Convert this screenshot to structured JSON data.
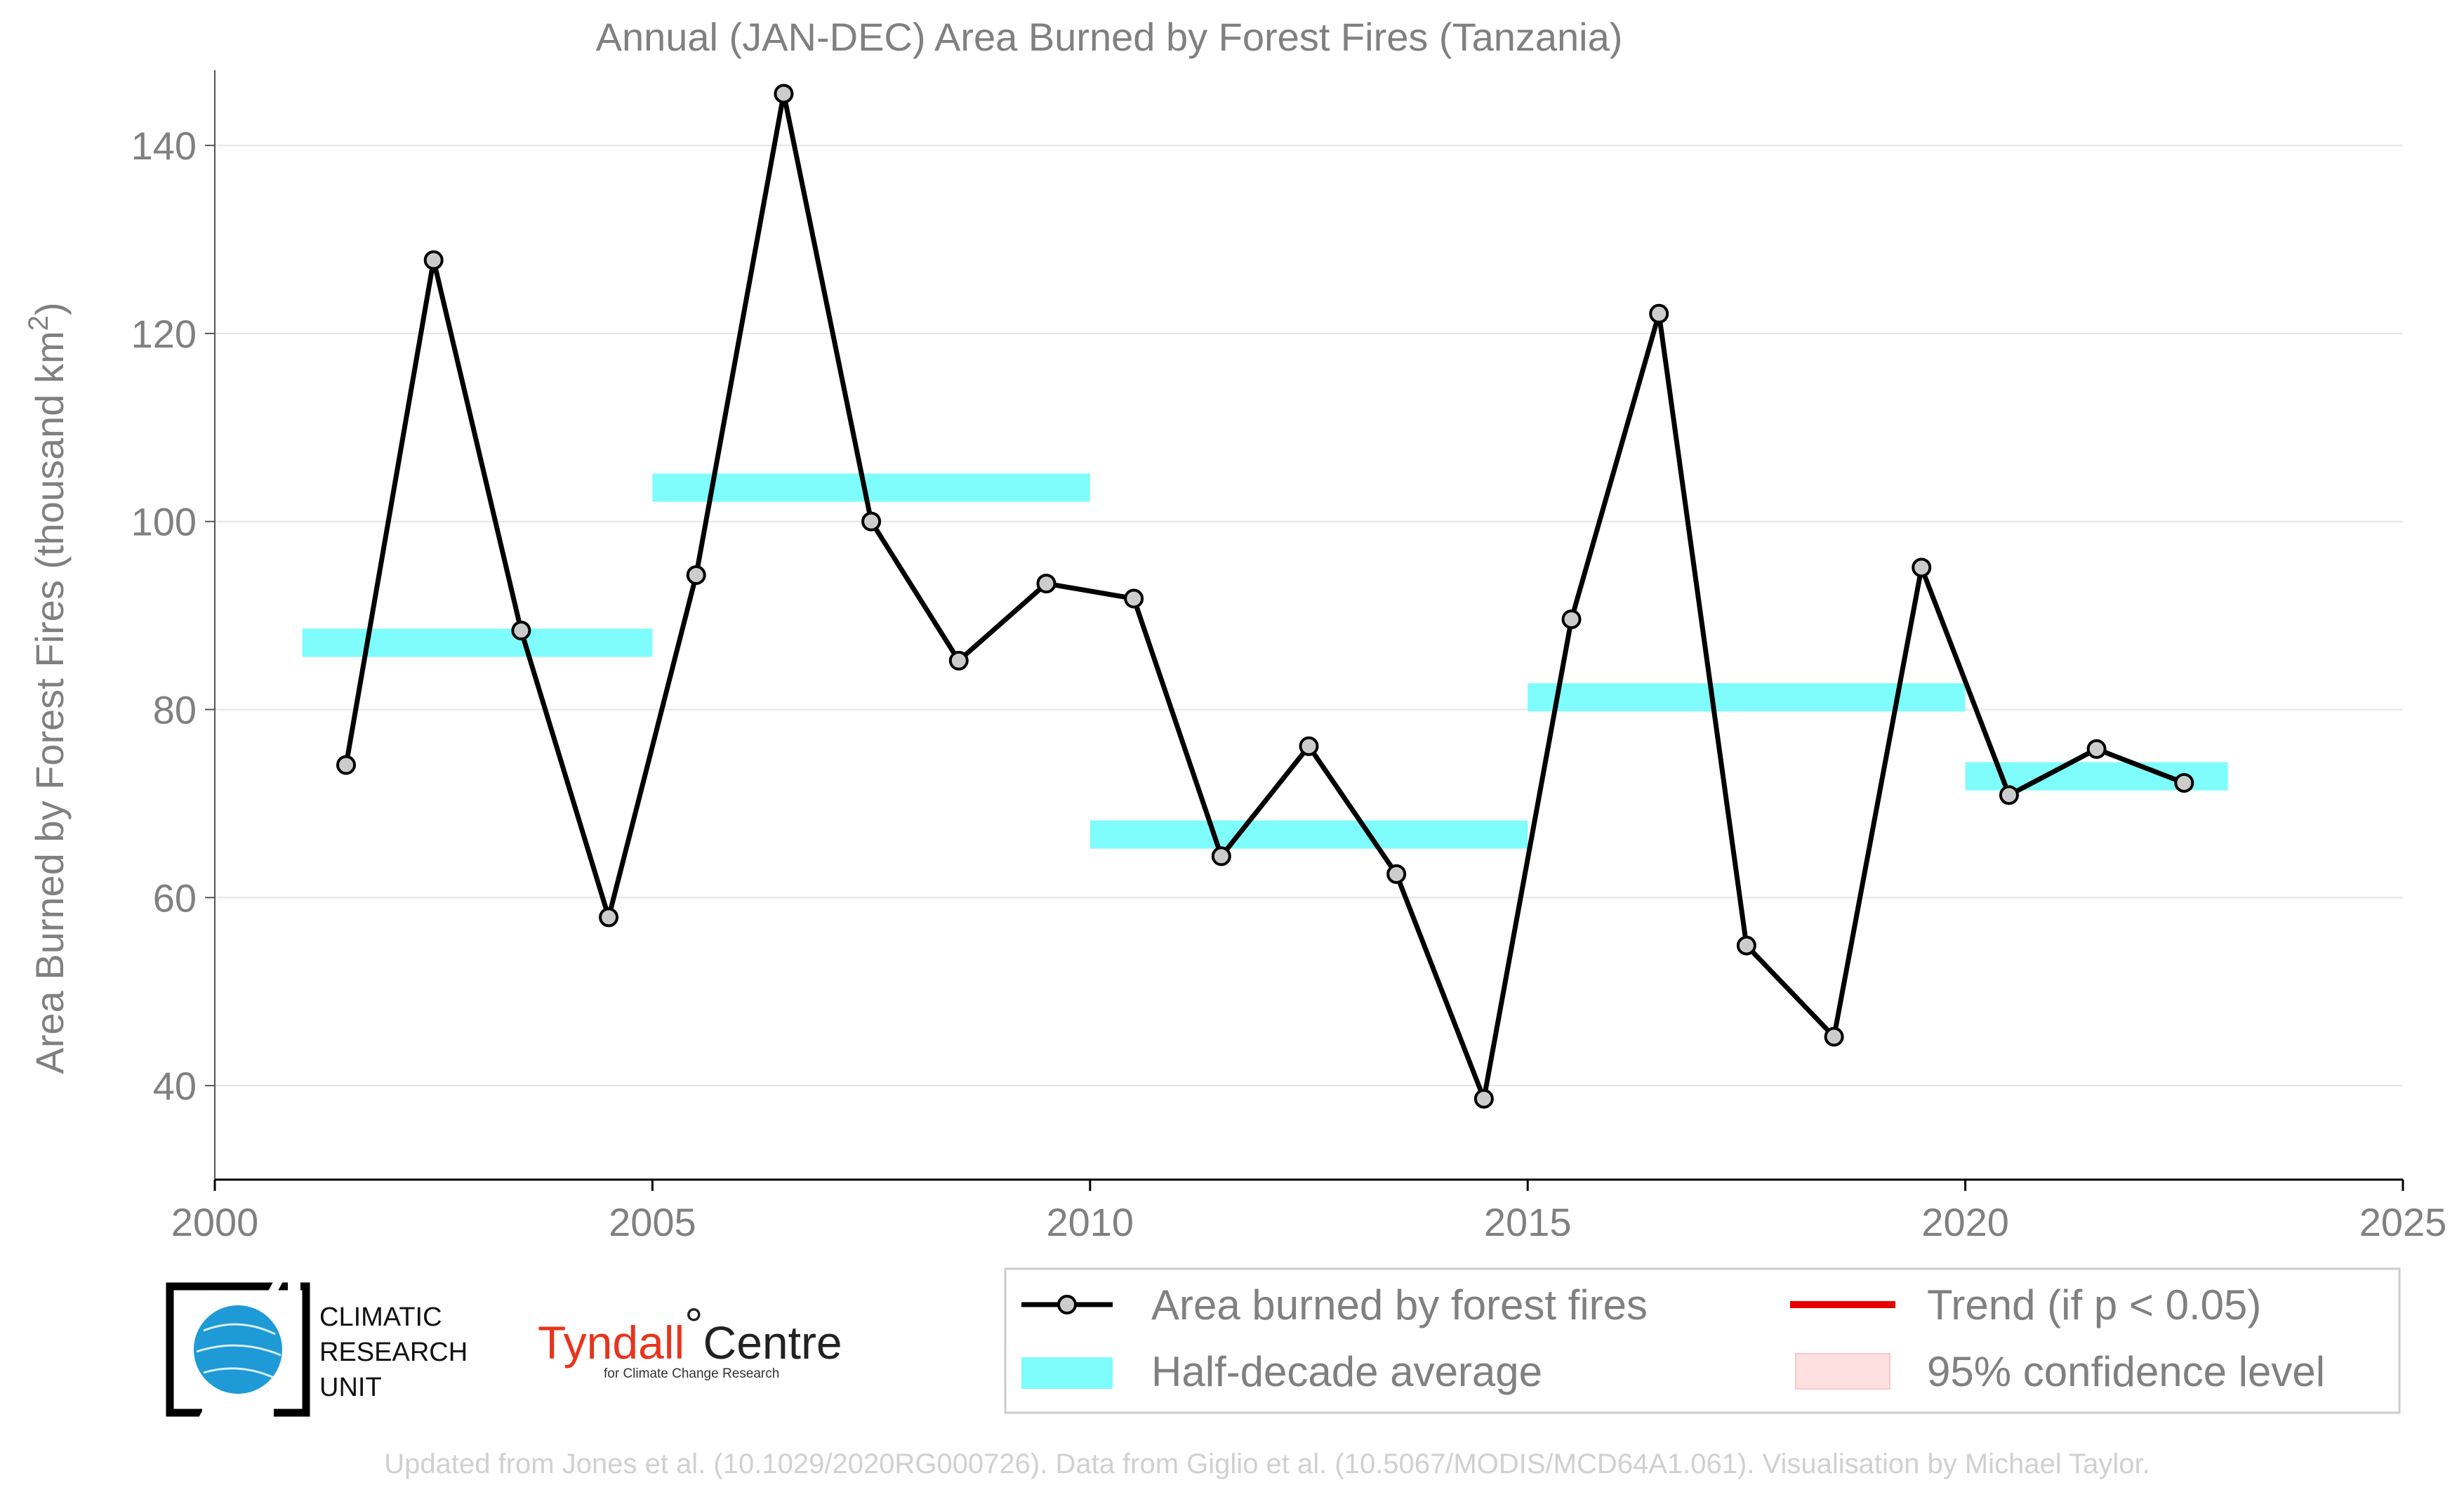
{
  "chart_data": {
    "type": "line",
    "title": "Annual (JAN-DEC) Area Burned by Forest Fires (Tanzania)",
    "xlabel": "",
    "ylabel": "Area Burned by Forest Fires (thousand km",
    "ylabel_superscript": "2",
    "ylabel_close": ")",
    "xlim": [
      2000,
      2025
    ],
    "ylim": [
      30,
      148
    ],
    "x_ticks": [
      "2000",
      "2005",
      "2010",
      "2015",
      "2020",
      "2025"
    ],
    "y_ticks": [
      "40",
      "60",
      "80",
      "100",
      "120",
      "140"
    ],
    "grid": "horizontal",
    "legend_position": "bottom-right",
    "series": [
      {
        "name": "Area burned by forest fires",
        "color": "#000000",
        "marker_fill": "#cccccc",
        "x": [
          2001.5,
          2002.5,
          2003.5,
          2004.5,
          2005.5,
          2006.5,
          2007.5,
          2008.5,
          2009.5,
          2010.5,
          2011.5,
          2012.5,
          2013.5,
          2014.5,
          2015.5,
          2016.5,
          2017.5,
          2018.5,
          2019.5,
          2020.5,
          2021.5,
          2022.5
        ],
        "values": [
          74.1,
          127.8,
          88.4,
          57.9,
          94.3,
          145.5,
          100.0,
          85.2,
          93.4,
          91.8,
          64.4,
          76.1,
          62.5,
          38.6,
          89.6,
          122.1,
          54.9,
          45.2,
          95.1,
          70.9,
          75.8,
          72.2
        ]
      }
    ],
    "half_decade_averages": {
      "name": "Half-decade average",
      "color": "#7ffcfc",
      "segments": [
        {
          "x_start": 2001,
          "x_end": 2005,
          "y_low": 85.6,
          "y_high": 88.6
        },
        {
          "x_start": 2005,
          "x_end": 2010,
          "y_low": 102.1,
          "y_high": 105.1
        },
        {
          "x_start": 2010,
          "x_end": 2015,
          "y_low": 65.2,
          "y_high": 68.2
        },
        {
          "x_start": 2015,
          "x_end": 2020,
          "y_low": 79.8,
          "y_high": 82.8
        },
        {
          "x_start": 2020,
          "x_end": 2023,
          "y_low": 71.4,
          "y_high": 74.4
        }
      ]
    },
    "legend": [
      {
        "label": "Area burned by forest fires",
        "style": "line-marker",
        "color": "#000000"
      },
      {
        "label": "Half-decade average",
        "style": "band",
        "color": "#7ffcfc"
      },
      {
        "label": "Trend (if p < 0.05)",
        "style": "line",
        "color": "#e80000"
      },
      {
        "label": "95% confidence level",
        "style": "band",
        "color": "#ffe0e0"
      }
    ]
  },
  "logos": {
    "cru_line1": "CLIMATIC",
    "cru_line2": "RESEARCH",
    "cru_line3": "UNIT",
    "tyndall_name": "Tyndall",
    "tyndall_degree": "°",
    "tyndall_centre": "Centre",
    "tyndall_sub": "for Climate Change Research"
  },
  "credit": "Updated from Jones et al. (10.1029/2020RG000726). Data from Giglio et al. (10.5067/MODIS/MCD64A1.061). Visualisation by Michael Taylor."
}
